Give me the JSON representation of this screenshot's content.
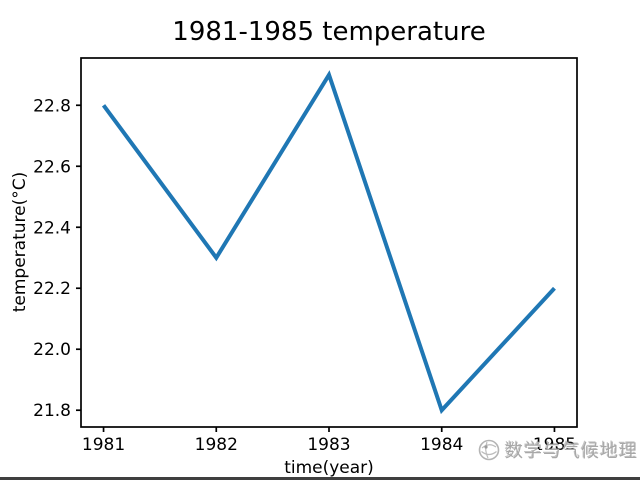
{
  "chart_data": {
    "type": "line",
    "title": "1981-1985 temperature",
    "xlabel": "time(year)",
    "ylabel": "temperature(°C)",
    "x": [
      1981,
      1982,
      1983,
      1984,
      1985
    ],
    "values": [
      22.8,
      22.3,
      22.9,
      21.8,
      22.2
    ],
    "series_name": "temperature",
    "xlim": [
      1980.8,
      1985.2
    ],
    "ylim": [
      21.745,
      22.955
    ],
    "xticks": {
      "values": [
        1981,
        1982,
        1983,
        1984,
        1985
      ],
      "labels": [
        "1981",
        "1982",
        "1983",
        "1984",
        "1985"
      ]
    },
    "yticks": {
      "values": [
        21.8,
        22.0,
        22.2,
        22.4,
        22.6,
        22.8
      ],
      "labels": [
        "21.8",
        "22.0",
        "22.2",
        "22.4",
        "22.6",
        "22.8"
      ]
    },
    "line_color": "#1f77b4",
    "line_width": 4,
    "axis_color": "#000000",
    "grid": false,
    "legend": null
  },
  "watermark": {
    "text": "数学与气候地理",
    "logo": "swirl-globe-icon",
    "color": "#a8a8a8"
  },
  "frame": {
    "bottom_bar_color": "#3f3f3f"
  }
}
